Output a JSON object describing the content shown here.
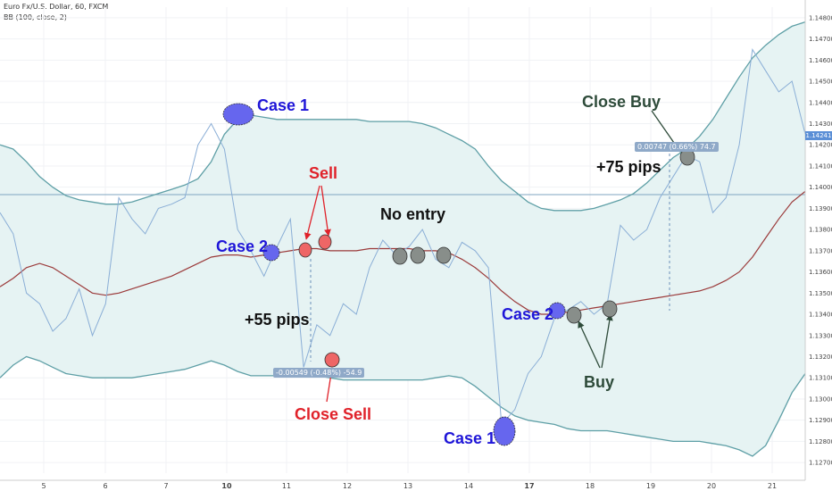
{
  "header": {
    "symbol_line": "Euro Fx/U.S. Dollar, 60, FXCM",
    "indicator_line": "BB (100, close, 2)"
  },
  "current_price": "1.14241",
  "colors": {
    "price": "#8aaed6",
    "band": "#5e9fa6",
    "band_fill": "#e6f3f3",
    "basis": "#9b3a3a",
    "blue_marker": "#6666ee",
    "red_marker": "#ee6666",
    "gray_marker": "#888e8a",
    "current_price_bg": "#5b8fd6"
  },
  "annotations": {
    "case1_top": "Case 1",
    "case2_left": "Case 2",
    "sell": "Sell",
    "no_entry": "No entry",
    "pips55": "+55 pips",
    "close_sell": "Close Sell",
    "case2_right": "Case 2",
    "buy": "Buy",
    "case1_bottom": "Case 1",
    "close_buy": "Close Buy",
    "pips75": "+75 pips"
  },
  "measure_tooltips": {
    "sell_trade": "-0.00549 (-0.48%) -54.9",
    "buy_trade": "0.00747 (0.66%) 74.7"
  },
  "chart_data": {
    "type": "line",
    "title": "Euro Fx/U.S. Dollar, 60, FXCM",
    "indicator": "BB (100, close, 2)",
    "y_axis": {
      "ylim": [
        1.1265,
        1.1485
      ],
      "tick_labels": [
        "1.14800",
        "1.14700",
        "1.14600",
        "1.14500",
        "1.14400",
        "1.14300",
        "1.14200",
        "1.14100",
        "1.14000",
        "1.13900",
        "1.13800",
        "1.13700",
        "1.13600",
        "1.13500",
        "1.13400",
        "1.13300",
        "1.13200",
        "1.13100",
        "1.13000",
        "1.12900",
        "1.12800",
        "1.12700"
      ],
      "position": "right"
    },
    "x_axis": {
      "tick_labels": [
        "5",
        "6",
        "7",
        "10",
        "11",
        "12",
        "13",
        "14",
        "17",
        "18",
        "19",
        "20",
        "21"
      ],
      "bold_labels": [
        "10",
        "17"
      ]
    },
    "horizontal_line": 1.13965,
    "x": [
      5.0,
      5.2,
      5.4,
      5.6,
      5.8,
      6.0,
      6.2,
      6.4,
      6.6,
      6.8,
      7.0,
      7.2,
      7.4,
      7.6,
      7.8,
      10.0,
      10.2,
      10.4,
      10.6,
      10.8,
      11.0,
      11.2,
      11.4,
      11.6,
      11.8,
      12.0,
      12.2,
      12.4,
      12.6,
      12.8,
      13.0,
      13.2,
      13.4,
      13.6,
      13.8,
      14.0,
      14.2,
      14.4,
      14.6,
      14.8,
      17.0,
      17.2,
      17.4,
      17.6,
      17.8,
      18.0,
      18.2,
      18.4,
      18.6,
      18.8,
      19.0,
      19.2,
      19.4,
      19.6,
      19.8,
      20.0,
      20.2,
      20.4,
      20.6,
      20.8,
      21.0,
      21.2
    ],
    "series": [
      {
        "name": "Price",
        "values": [
          1.1388,
          1.1378,
          1.135,
          1.1345,
          1.1332,
          1.1338,
          1.1352,
          1.133,
          1.1345,
          1.1395,
          1.1385,
          1.1378,
          1.139,
          1.1392,
          1.1395,
          1.142,
          1.143,
          1.1418,
          1.138,
          1.137,
          1.1358,
          1.1372,
          1.1385,
          1.1315,
          1.1335,
          1.133,
          1.1345,
          1.134,
          1.1362,
          1.1375,
          1.1368,
          1.1372,
          1.138,
          1.1366,
          1.1362,
          1.1374,
          1.137,
          1.1362,
          1.1288,
          1.1295,
          1.1312,
          1.132,
          1.1338,
          1.1342,
          1.1346,
          1.134,
          1.1345,
          1.1382,
          1.1375,
          1.138,
          1.1395,
          1.1405,
          1.1415,
          1.1412,
          1.1388,
          1.1395,
          1.142,
          1.1465,
          1.1455,
          1.1445,
          1.145,
          1.1425
        ]
      },
      {
        "name": "Upper band",
        "values": [
          1.142,
          1.1418,
          1.1412,
          1.1405,
          1.14,
          1.1396,
          1.1394,
          1.1393,
          1.1392,
          1.1392,
          1.1393,
          1.1395,
          1.1397,
          1.1399,
          1.1401,
          1.1404,
          1.1412,
          1.1425,
          1.1432,
          1.1434,
          1.1433,
          1.1432,
          1.1432,
          1.1432,
          1.1432,
          1.1432,
          1.1432,
          1.1432,
          1.1431,
          1.1431,
          1.1431,
          1.1431,
          1.143,
          1.1428,
          1.1425,
          1.1422,
          1.1418,
          1.141,
          1.1403,
          1.1398,
          1.1393,
          1.139,
          1.1389,
          1.1389,
          1.1389,
          1.139,
          1.1392,
          1.1394,
          1.1397,
          1.1402,
          1.1408,
          1.1414,
          1.1418,
          1.1424,
          1.1432,
          1.1442,
          1.1452,
          1.1461,
          1.1467,
          1.1472,
          1.1476,
          1.1478
        ]
      },
      {
        "name": "Basis",
        "values": [
          1.1353,
          1.1357,
          1.1362,
          1.1364,
          1.1362,
          1.1358,
          1.1354,
          1.135,
          1.1349,
          1.135,
          1.1352,
          1.1354,
          1.1356,
          1.1358,
          1.1361,
          1.1364,
          1.1367,
          1.1368,
          1.1368,
          1.1367,
          1.1368,
          1.1369,
          1.137,
          1.1371,
          1.1371,
          1.137,
          1.137,
          1.137,
          1.1371,
          1.1371,
          1.1371,
          1.1371,
          1.137,
          1.137,
          1.1369,
          1.1366,
          1.1362,
          1.1357,
          1.1351,
          1.1346,
          1.1342,
          1.134,
          1.134,
          1.1341,
          1.1342,
          1.1343,
          1.1344,
          1.1345,
          1.1346,
          1.1347,
          1.1348,
          1.1349,
          1.135,
          1.1351,
          1.1353,
          1.1356,
          1.136,
          1.1367,
          1.1376,
          1.1385,
          1.1393,
          1.1398
        ]
      },
      {
        "name": "Lower band",
        "values": [
          1.131,
          1.1316,
          1.132,
          1.1318,
          1.1315,
          1.1312,
          1.1311,
          1.131,
          1.131,
          1.131,
          1.131,
          1.1311,
          1.1312,
          1.1313,
          1.1314,
          1.1316,
          1.1318,
          1.1316,
          1.1313,
          1.1311,
          1.1311,
          1.1311,
          1.1311,
          1.1311,
          1.1311,
          1.131,
          1.1309,
          1.1309,
          1.1309,
          1.1309,
          1.1309,
          1.1309,
          1.1309,
          1.131,
          1.1311,
          1.131,
          1.1306,
          1.1301,
          1.1296,
          1.1292,
          1.129,
          1.1289,
          1.1288,
          1.1286,
          1.1285,
          1.1285,
          1.1285,
          1.1284,
          1.1283,
          1.1282,
          1.1281,
          1.128,
          1.128,
          1.128,
          1.1279,
          1.1278,
          1.1276,
          1.1273,
          1.1278,
          1.129,
          1.1303,
          1.1312
        ]
      }
    ],
    "markers": [
      {
        "name": "case1_top",
        "x": 10.2,
        "y": 1.14315,
        "color": "blue"
      },
      {
        "name": "case2_left",
        "x": 10.8,
        "y": 1.1367,
        "color": "blue"
      },
      {
        "name": "sell1",
        "x": 11.5,
        "y": 1.1369,
        "color": "red"
      },
      {
        "name": "sell2",
        "x": 11.9,
        "y": 1.1371,
        "color": "red"
      },
      {
        "name": "close_sell",
        "x": 12.2,
        "y": 1.1316,
        "color": "red"
      },
      {
        "name": "noentry1",
        "x": 13.3,
        "y": 1.1367,
        "color": "gray"
      },
      {
        "name": "noentry2",
        "x": 13.6,
        "y": 1.1367,
        "color": "gray"
      },
      {
        "name": "noentry3",
        "x": 14.1,
        "y": 1.1367,
        "color": "gray"
      },
      {
        "name": "case2_right",
        "x": 17.6,
        "y": 1.134,
        "color": "blue"
      },
      {
        "name": "buy1",
        "x": 17.9,
        "y": 1.1338,
        "color": "gray"
      },
      {
        "name": "buy2",
        "x": 18.5,
        "y": 1.134,
        "color": "gray"
      },
      {
        "name": "close_buy",
        "x": 19.6,
        "y": 1.1413,
        "color": "gray"
      },
      {
        "name": "case1_bottom",
        "x": 15.2,
        "y": 1.1283,
        "color": "blue"
      }
    ]
  }
}
